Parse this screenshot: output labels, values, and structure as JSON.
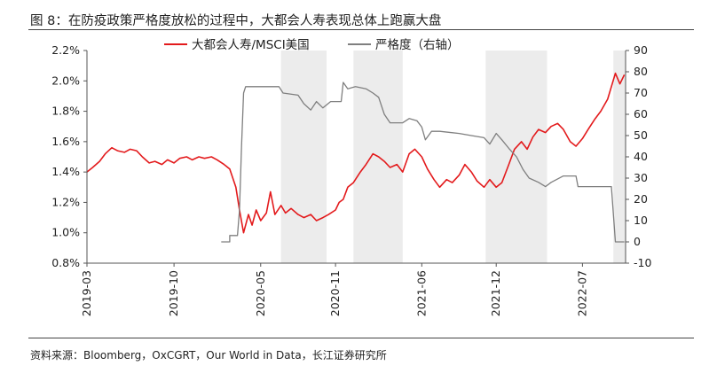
{
  "figure": {
    "title": "图 8：在防疫政策严格度放松的过程中，大都会人寿表现总体上跑赢大盘",
    "source": "资料来源：Bloomberg，OxCGRT，Our World in Data，长江证券研究所"
  },
  "chart_data": {
    "type": "line",
    "title": "",
    "xlabel": "",
    "ylabel_left": "",
    "ylabel_right": "",
    "x_ticks": [
      "2019-03",
      "2019-10",
      "2020-05",
      "2020-11",
      "2021-06",
      "2021-12",
      "2022-07"
    ],
    "y_left": {
      "ticks": [
        "0.8%",
        "1.0%",
        "1.2%",
        "1.4%",
        "1.6%",
        "1.8%",
        "2.0%",
        "2.2%"
      ],
      "ylim": [
        0.8,
        2.2
      ],
      "unit": "%"
    },
    "y_right": {
      "ticks": [
        "-10",
        "0",
        "10",
        "20",
        "30",
        "40",
        "50",
        "60",
        "70",
        "80",
        "90"
      ],
      "ylim": [
        -10,
        90
      ]
    },
    "legend": {
      "position": "top-center"
    },
    "grid": false,
    "shaded_periods": [
      {
        "start": "2020-06-20",
        "end": "2020-10-10"
      },
      {
        "start": "2020-12-15",
        "end": "2021-04-15"
      },
      {
        "start": "2021-11-05",
        "end": "2022-04-05"
      },
      {
        "start": "2022-09-15",
        "end": "2022-10-15"
      }
    ],
    "series": [
      {
        "name": "大都会人寿/MSCI美国",
        "axis": "left",
        "color": "#e31a1c",
        "points": [
          [
            "2019-03-01",
            1.4
          ],
          [
            "2019-03-15",
            1.43
          ],
          [
            "2019-04-01",
            1.47
          ],
          [
            "2019-04-15",
            1.52
          ],
          [
            "2019-05-01",
            1.56
          ],
          [
            "2019-05-15",
            1.54
          ],
          [
            "2019-06-01",
            1.53
          ],
          [
            "2019-06-15",
            1.55
          ],
          [
            "2019-07-01",
            1.54
          ],
          [
            "2019-07-15",
            1.5
          ],
          [
            "2019-08-01",
            1.46
          ],
          [
            "2019-08-15",
            1.47
          ],
          [
            "2019-09-01",
            1.45
          ],
          [
            "2019-09-15",
            1.48
          ],
          [
            "2019-10-01",
            1.46
          ],
          [
            "2019-10-15",
            1.49
          ],
          [
            "2019-11-01",
            1.5
          ],
          [
            "2019-11-15",
            1.48
          ],
          [
            "2019-12-01",
            1.5
          ],
          [
            "2019-12-15",
            1.49
          ],
          [
            "2020-01-01",
            1.5
          ],
          [
            "2020-01-15",
            1.48
          ],
          [
            "2020-02-01",
            1.45
          ],
          [
            "2020-02-15",
            1.42
          ],
          [
            "2020-03-01",
            1.3
          ],
          [
            "2020-03-10",
            1.15
          ],
          [
            "2020-03-20",
            1.0
          ],
          [
            "2020-04-01",
            1.12
          ],
          [
            "2020-04-10",
            1.05
          ],
          [
            "2020-04-20",
            1.15
          ],
          [
            "2020-05-01",
            1.08
          ],
          [
            "2020-05-15",
            1.13
          ],
          [
            "2020-05-25",
            1.27
          ],
          [
            "2020-06-05",
            1.12
          ],
          [
            "2020-06-20",
            1.18
          ],
          [
            "2020-07-01",
            1.13
          ],
          [
            "2020-07-15",
            1.16
          ],
          [
            "2020-08-01",
            1.12
          ],
          [
            "2020-08-15",
            1.1
          ],
          [
            "2020-09-01",
            1.12
          ],
          [
            "2020-09-15",
            1.08
          ],
          [
            "2020-10-01",
            1.1
          ],
          [
            "2020-10-15",
            1.12
          ],
          [
            "2020-11-01",
            1.15
          ],
          [
            "2020-11-10",
            1.2
          ],
          [
            "2020-11-20",
            1.22
          ],
          [
            "2020-12-01",
            1.3
          ],
          [
            "2020-12-15",
            1.33
          ],
          [
            "2021-01-01",
            1.4
          ],
          [
            "2021-01-15",
            1.45
          ],
          [
            "2021-02-01",
            1.52
          ],
          [
            "2021-02-15",
            1.5
          ],
          [
            "2021-03-01",
            1.47
          ],
          [
            "2021-03-15",
            1.43
          ],
          [
            "2021-04-01",
            1.45
          ],
          [
            "2021-04-15",
            1.4
          ],
          [
            "2021-05-01",
            1.52
          ],
          [
            "2021-05-15",
            1.55
          ],
          [
            "2021-06-01",
            1.5
          ],
          [
            "2021-06-15",
            1.42
          ],
          [
            "2021-07-01",
            1.35
          ],
          [
            "2021-07-15",
            1.3
          ],
          [
            "2021-08-01",
            1.35
          ],
          [
            "2021-08-15",
            1.33
          ],
          [
            "2021-09-01",
            1.38
          ],
          [
            "2021-09-15",
            1.45
          ],
          [
            "2021-10-01",
            1.4
          ],
          [
            "2021-10-15",
            1.34
          ],
          [
            "2021-11-01",
            1.3
          ],
          [
            "2021-11-15",
            1.35
          ],
          [
            "2021-12-01",
            1.3
          ],
          [
            "2021-12-15",
            1.33
          ],
          [
            "2022-01-01",
            1.45
          ],
          [
            "2022-01-15",
            1.55
          ],
          [
            "2022-02-01",
            1.6
          ],
          [
            "2022-02-15",
            1.55
          ],
          [
            "2022-03-01",
            1.63
          ],
          [
            "2022-03-15",
            1.68
          ],
          [
            "2022-04-01",
            1.66
          ],
          [
            "2022-04-15",
            1.7
          ],
          [
            "2022-05-01",
            1.72
          ],
          [
            "2022-05-15",
            1.68
          ],
          [
            "2022-06-01",
            1.6
          ],
          [
            "2022-06-15",
            1.57
          ],
          [
            "2022-07-01",
            1.62
          ],
          [
            "2022-07-15",
            1.68
          ],
          [
            "2022-08-01",
            1.75
          ],
          [
            "2022-08-15",
            1.8
          ],
          [
            "2022-09-01",
            1.88
          ],
          [
            "2022-09-20",
            2.05
          ],
          [
            "2022-10-01",
            1.98
          ],
          [
            "2022-10-12",
            2.04
          ]
        ]
      },
      {
        "name": "严格度（右轴）",
        "axis": "right",
        "color": "#7f7f7f",
        "points": [
          [
            "2020-01-25",
            0
          ],
          [
            "2020-02-15",
            0
          ],
          [
            "2020-02-15",
            3
          ],
          [
            "2020-03-05",
            3
          ],
          [
            "2020-03-10",
            15
          ],
          [
            "2020-03-15",
            45
          ],
          [
            "2020-03-20",
            70
          ],
          [
            "2020-03-25",
            73
          ],
          [
            "2020-05-01",
            73
          ],
          [
            "2020-06-15",
            73
          ],
          [
            "2020-06-25",
            70
          ],
          [
            "2020-08-01",
            69
          ],
          [
            "2020-08-15",
            65
          ],
          [
            "2020-09-01",
            62
          ],
          [
            "2020-09-15",
            66
          ],
          [
            "2020-10-01",
            63
          ],
          [
            "2020-10-20",
            66
          ],
          [
            "2020-11-15",
            66
          ],
          [
            "2020-11-20",
            75
          ],
          [
            "2020-12-01",
            72
          ],
          [
            "2020-12-20",
            73
          ],
          [
            "2021-01-15",
            72
          ],
          [
            "2021-02-01",
            70
          ],
          [
            "2021-02-15",
            68
          ],
          [
            "2021-03-01",
            60
          ],
          [
            "2021-03-15",
            56
          ],
          [
            "2021-04-15",
            56
          ],
          [
            "2021-05-01",
            58
          ],
          [
            "2021-05-20",
            57
          ],
          [
            "2021-06-01",
            54
          ],
          [
            "2021-06-10",
            48
          ],
          [
            "2021-06-25",
            52
          ],
          [
            "2021-07-15",
            52
          ],
          [
            "2021-09-01",
            51
          ],
          [
            "2021-10-01",
            50
          ],
          [
            "2021-11-01",
            49
          ],
          [
            "2021-11-15",
            46
          ],
          [
            "2021-12-01",
            51
          ],
          [
            "2021-12-15",
            48
          ],
          [
            "2022-01-01",
            44
          ],
          [
            "2022-01-20",
            40
          ],
          [
            "2022-02-05",
            34
          ],
          [
            "2022-02-20",
            30
          ],
          [
            "2022-03-15",
            28
          ],
          [
            "2022-04-01",
            26
          ],
          [
            "2022-04-15",
            28
          ],
          [
            "2022-05-15",
            31
          ],
          [
            "2022-06-01",
            31
          ],
          [
            "2022-06-15",
            31
          ],
          [
            "2022-06-20",
            26
          ],
          [
            "2022-07-15",
            26
          ],
          [
            "2022-07-20",
            26
          ],
          [
            "2022-08-15",
            26
          ],
          [
            "2022-09-10",
            26
          ],
          [
            "2022-09-20",
            0
          ],
          [
            "2022-10-12",
            0
          ]
        ]
      }
    ]
  }
}
